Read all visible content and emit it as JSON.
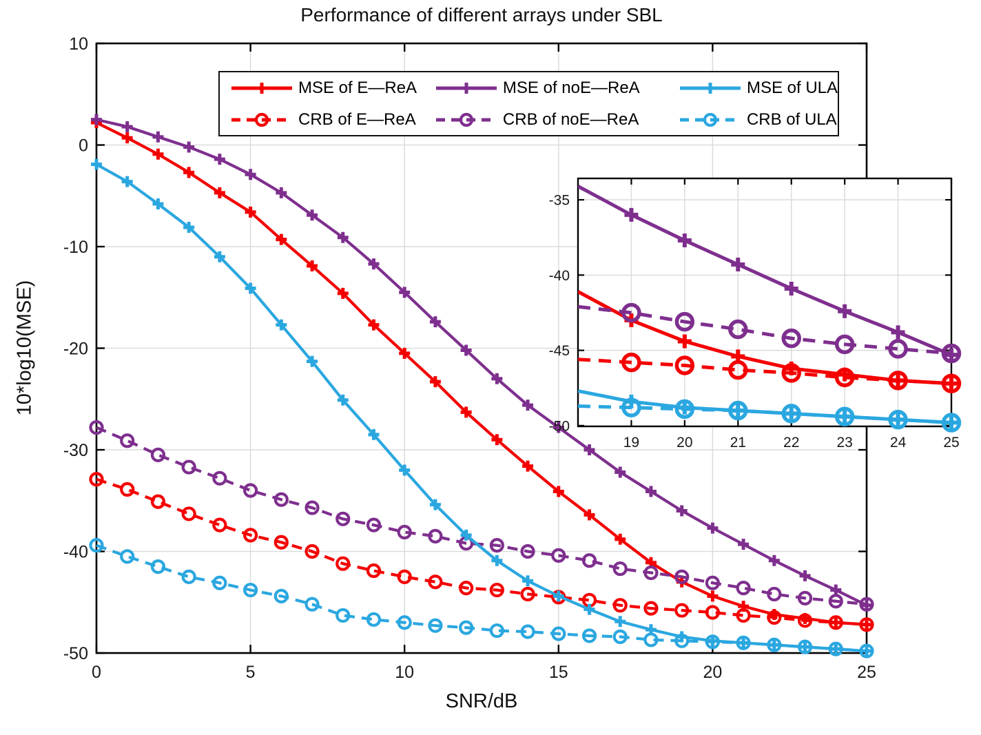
{
  "chart_data": {
    "type": "line",
    "title": "Performance of different arrays under SBL",
    "xlabel": "SNR/dB",
    "ylabel": "10*log10(MSE)",
    "xlim": [
      0,
      25
    ],
    "ylim": [
      -50,
      10
    ],
    "x_ticks": [
      0,
      5,
      10,
      15,
      20,
      25
    ],
    "y_ticks": [
      10,
      0,
      -10,
      -20,
      -30,
      -40,
      -50
    ],
    "grid": true,
    "legend_position": "top-inside",
    "x": [
      0,
      1,
      2,
      3,
      4,
      5,
      6,
      7,
      8,
      9,
      10,
      11,
      12,
      13,
      14,
      15,
      16,
      17,
      18,
      19,
      20,
      21,
      22,
      23,
      24,
      25
    ],
    "series": [
      {
        "name": "MSE of E—ReA",
        "color": "#f40000",
        "style": "solid",
        "marker": "plus",
        "values": [
          2.2,
          0.7,
          -0.9,
          -2.7,
          -4.7,
          -6.6,
          -9.3,
          -11.9,
          -14.6,
          -17.7,
          -20.5,
          -23.3,
          -26.3,
          -29.0,
          -31.6,
          -34.1,
          -36.4,
          -38.8,
          -41.1,
          -43.0,
          -44.4,
          -45.4,
          -46.2,
          -46.6,
          -47.0,
          -47.2
        ]
      },
      {
        "name": "CRB of E—ReA",
        "color": "#f40000",
        "style": "dashed",
        "marker": "circle",
        "values": [
          -32.9,
          -33.9,
          -35.1,
          -36.3,
          -37.4,
          -38.4,
          -39.1,
          -40.0,
          -41.2,
          -41.9,
          -42.5,
          -43.0,
          -43.6,
          -43.8,
          -44.2,
          -44.5,
          -44.8,
          -45.3,
          -45.6,
          -45.8,
          -46.0,
          -46.3,
          -46.5,
          -46.8,
          -47.0,
          -47.2
        ]
      },
      {
        "name": "MSE of noE—ReA",
        "color": "#7e2f8e",
        "style": "solid",
        "marker": "plus",
        "values": [
          2.5,
          1.8,
          0.8,
          -0.2,
          -1.4,
          -2.9,
          -4.7,
          -6.9,
          -9.1,
          -11.7,
          -14.5,
          -17.4,
          -20.2,
          -23.0,
          -25.6,
          -27.8,
          -30.0,
          -32.2,
          -34.1,
          -36.0,
          -37.7,
          -39.3,
          -40.9,
          -42.4,
          -43.8,
          -45.3
        ]
      },
      {
        "name": "CRB of noE—ReA",
        "color": "#7e2f8e",
        "style": "dashed",
        "marker": "circle",
        "values": [
          -27.8,
          -29.1,
          -30.5,
          -31.7,
          -32.8,
          -34.0,
          -34.9,
          -35.7,
          -36.8,
          -37.4,
          -38.1,
          -38.5,
          -39.2,
          -39.4,
          -40.0,
          -40.4,
          -40.9,
          -41.7,
          -42.1,
          -42.5,
          -43.1,
          -43.6,
          -44.2,
          -44.6,
          -44.9,
          -45.2
        ]
      },
      {
        "name": "MSE of ULA",
        "color": "#2ba7e0",
        "style": "solid",
        "marker": "plus",
        "values": [
          -1.9,
          -3.6,
          -5.8,
          -8.1,
          -11.0,
          -14.1,
          -17.7,
          -21.3,
          -25.1,
          -28.5,
          -32.0,
          -35.4,
          -38.4,
          -40.9,
          -42.9,
          -44.4,
          -45.7,
          -46.9,
          -47.7,
          -48.4,
          -48.8,
          -49.0,
          -49.2,
          -49.4,
          -49.6,
          -49.8
        ]
      },
      {
        "name": "CRB of ULA",
        "color": "#2ba7e0",
        "style": "dashed",
        "marker": "circle",
        "values": [
          -39.4,
          -40.5,
          -41.5,
          -42.5,
          -43.1,
          -43.8,
          -44.4,
          -45.2,
          -46.3,
          -46.7,
          -47.0,
          -47.3,
          -47.5,
          -47.8,
          -47.9,
          -48.1,
          -48.3,
          -48.4,
          -48.7,
          -48.8,
          -48.9,
          -49.0,
          -49.2,
          -49.4,
          -49.6,
          -49.8
        ]
      }
    ],
    "inset": {
      "xlim": [
        18,
        25
      ],
      "ylim": [
        -50.05,
        -33.58
      ],
      "x_ticks": [
        19,
        20,
        21,
        22,
        23,
        24,
        25
      ],
      "y_ticks": [
        -35,
        -40,
        -45,
        -50
      ]
    },
    "colors": {
      "grid": "#dbdbdb",
      "frame": "#000000",
      "text": "#1a1a1a"
    }
  }
}
